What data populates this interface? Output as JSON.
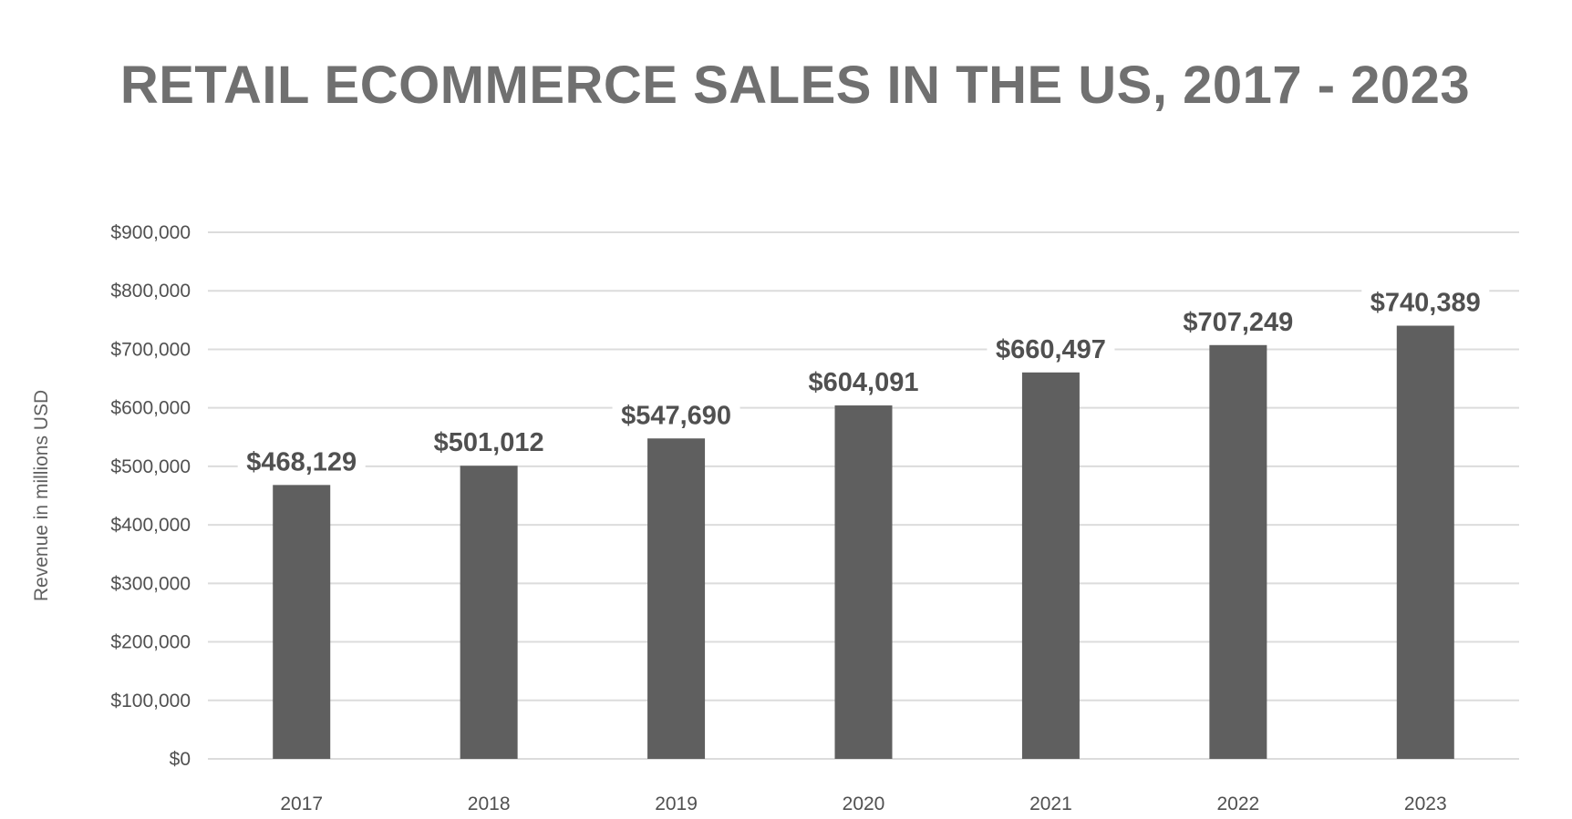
{
  "chart_data": {
    "type": "bar",
    "title": "RETAIL ECOMMERCE SALES IN THE US, 2017 - 2023",
    "xlabel": "",
    "ylabel": "Revenue in millions USD",
    "categories": [
      "2017",
      "2018",
      "2019",
      "2020",
      "2021",
      "2022",
      "2023"
    ],
    "values": [
      468129,
      501012,
      547690,
      604091,
      660497,
      707249,
      740389
    ],
    "value_labels": [
      "$468,129",
      "$501,012",
      "$547,690",
      "$604,091",
      "$660,497",
      "$707,249",
      "$740,389"
    ],
    "ylim": [
      0,
      900000
    ],
    "y_ticks": [
      0,
      100000,
      200000,
      300000,
      400000,
      500000,
      600000,
      700000,
      800000,
      900000
    ],
    "y_tick_labels": [
      "$0",
      "$100,000",
      "$200,000",
      "$300,000",
      "$400,000",
      "$500,000",
      "$600,000",
      "$700,000",
      "$800,000",
      "$900,000"
    ],
    "grid": true,
    "legend": "none",
    "colors": {
      "bar": "#5f5f5f",
      "grid": "#dcdcdc",
      "title": "#707070",
      "text": "#505050"
    }
  }
}
